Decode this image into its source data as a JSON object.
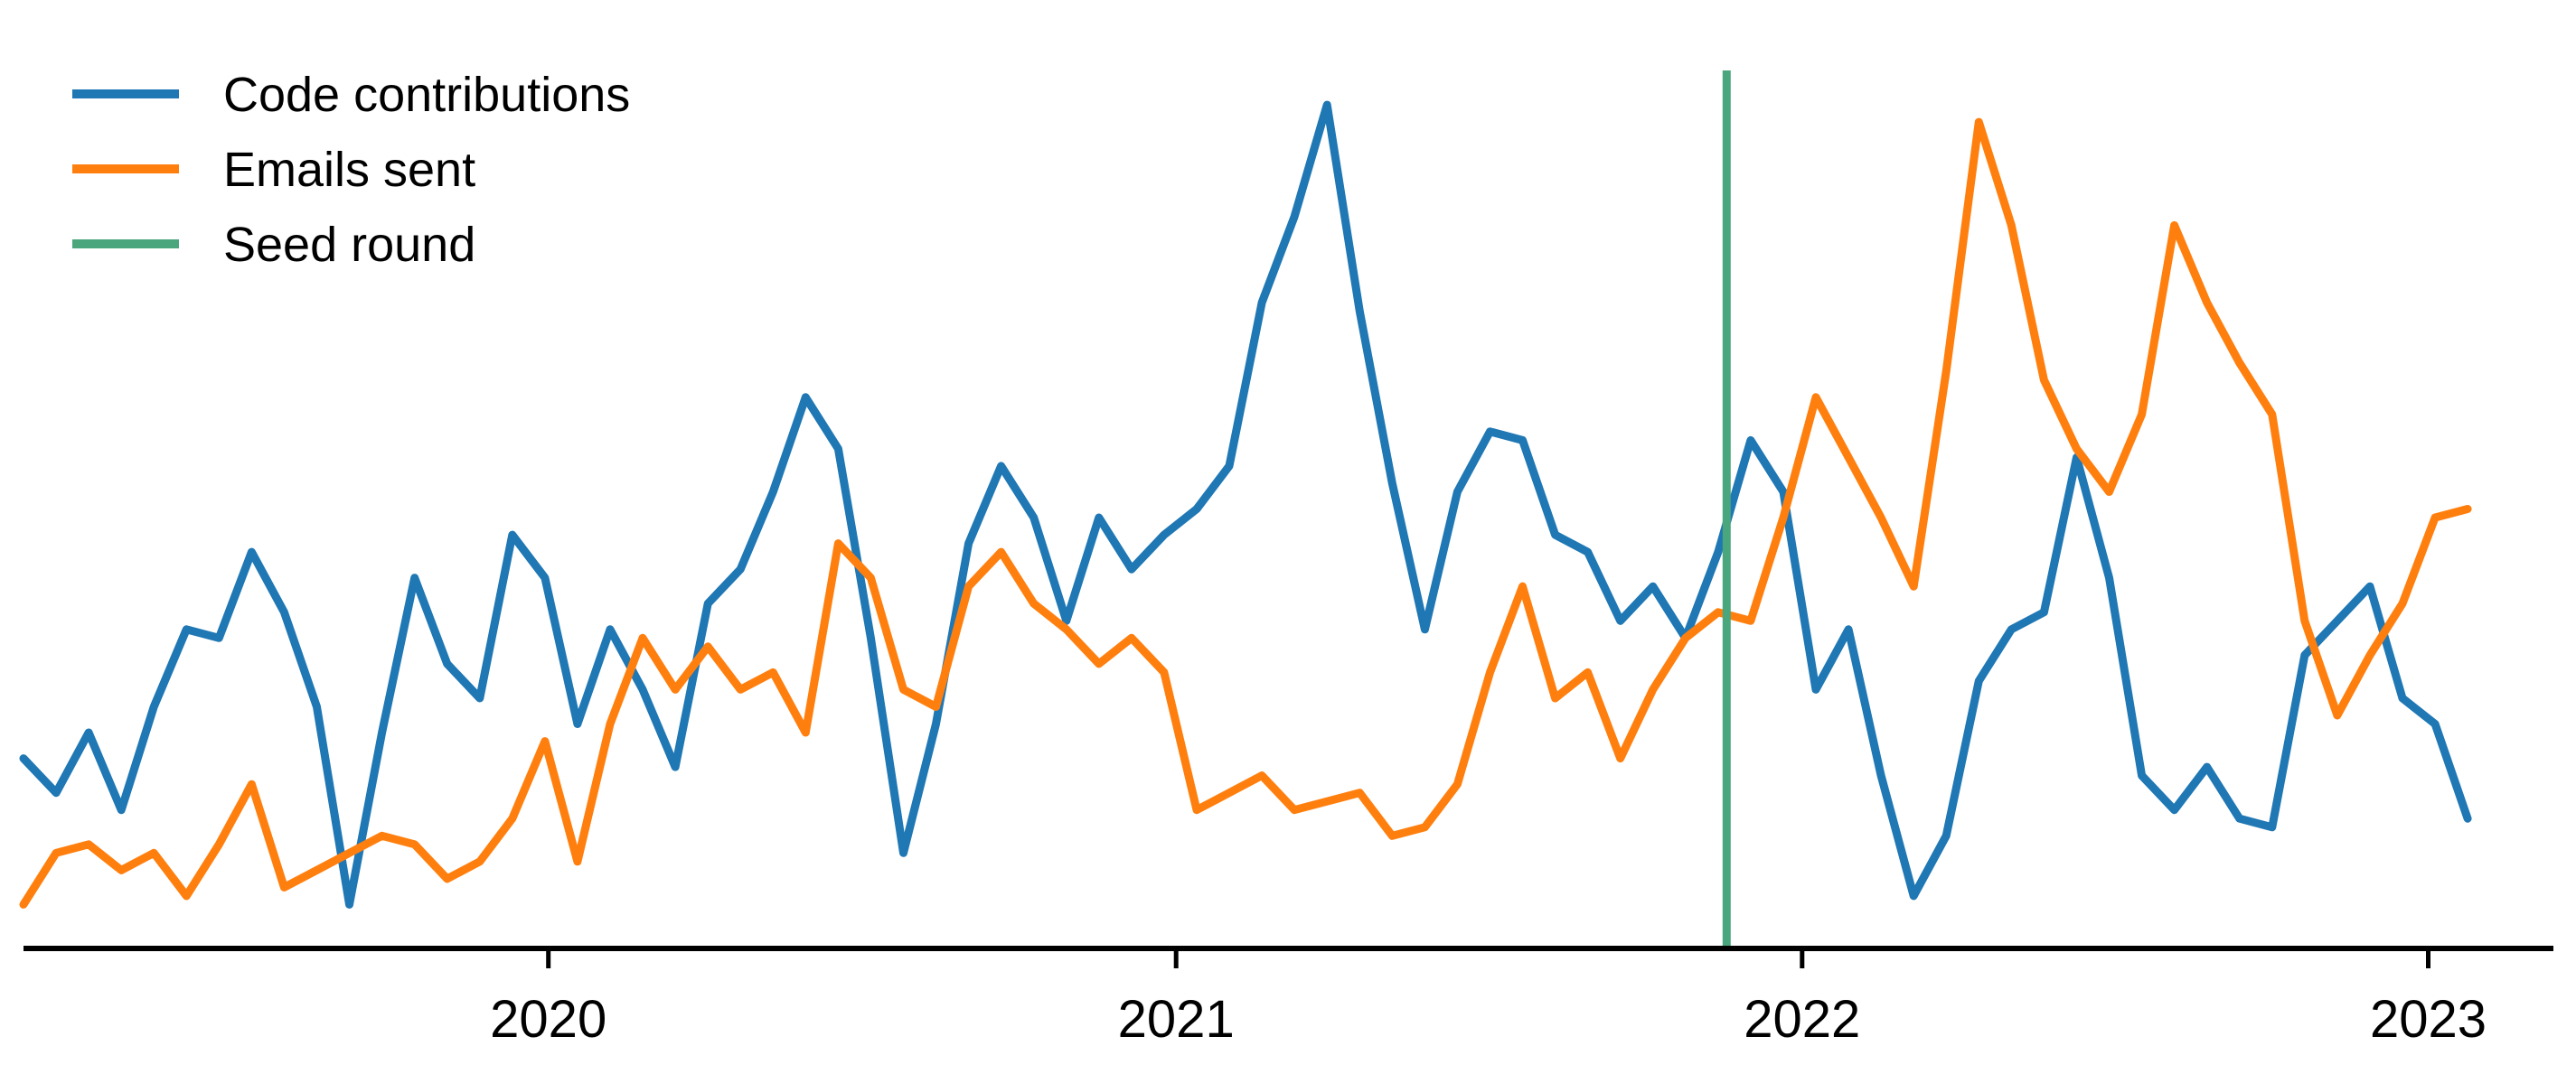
{
  "chart_data": {
    "type": "line",
    "x_axis": {
      "type": "date",
      "range": [
        "2019-03-01",
        "2023-03-15"
      ],
      "ticks": [
        {
          "value": "2020-01-01",
          "label": "2020"
        },
        {
          "value": "2021-01-01",
          "label": "2021"
        },
        {
          "value": "2022-01-01",
          "label": "2022"
        },
        {
          "value": "2023-01-01",
          "label": "2023"
        }
      ]
    },
    "y_axis": {
      "visible": false,
      "range": [
        0,
        100
      ]
    },
    "grid": false,
    "legend": {
      "position": "top-left"
    },
    "series": [
      {
        "name": "Code contributions",
        "color": "#1f77b4",
        "x": [
          "2019-03-01",
          "2019-03-20",
          "2019-04-08",
          "2019-04-27",
          "2019-05-16",
          "2019-06-04",
          "2019-06-23",
          "2019-07-12",
          "2019-07-31",
          "2019-08-19",
          "2019-09-07",
          "2019-09-26",
          "2019-10-15",
          "2019-11-03",
          "2019-11-22",
          "2019-12-11",
          "2019-12-30",
          "2020-01-18",
          "2020-02-06",
          "2020-02-25",
          "2020-03-15",
          "2020-04-03",
          "2020-04-22",
          "2020-05-11",
          "2020-05-30",
          "2020-06-18",
          "2020-07-07",
          "2020-07-26",
          "2020-08-14",
          "2020-09-02",
          "2020-09-21",
          "2020-10-10",
          "2020-10-29",
          "2020-11-17",
          "2020-12-06",
          "2020-12-25",
          "2021-01-13",
          "2021-02-01",
          "2021-02-20",
          "2021-03-11",
          "2021-03-30",
          "2021-04-18",
          "2021-05-07",
          "2021-05-26",
          "2021-06-14",
          "2021-07-03",
          "2021-07-22",
          "2021-08-10",
          "2021-08-29",
          "2021-09-17",
          "2021-10-06",
          "2021-10-25",
          "2021-11-13",
          "2021-12-02",
          "2021-12-21",
          "2022-01-09",
          "2022-01-28",
          "2022-02-16",
          "2022-03-07",
          "2022-03-26",
          "2022-04-14",
          "2022-05-03",
          "2022-05-22",
          "2022-06-10",
          "2022-06-29",
          "2022-07-18",
          "2022-08-06",
          "2022-08-25",
          "2022-09-13",
          "2022-10-02",
          "2022-10-21",
          "2022-11-09",
          "2022-11-28",
          "2022-12-17",
          "2023-01-05",
          "2023-01-24"
        ],
        "values": [
          20,
          16,
          23,
          14,
          26,
          35,
          34,
          44,
          37,
          26,
          3,
          23,
          41,
          31,
          27,
          46,
          41,
          24,
          35,
          28,
          19,
          38,
          42,
          51,
          62,
          56,
          34,
          9,
          24,
          45,
          54,
          48,
          36,
          48,
          42,
          46,
          49,
          54,
          73,
          83,
          96,
          72,
          52,
          35,
          51,
          58,
          57,
          46,
          44,
          36,
          40,
          34,
          44,
          57,
          51,
          28,
          35,
          18,
          4,
          11,
          29,
          35,
          37,
          55,
          41,
          18,
          14,
          19,
          13,
          12,
          32,
          36,
          40,
          27,
          24,
          13
        ]
      },
      {
        "name": "Emails sent",
        "color": "#ff7f0e",
        "x": [
          "2019-03-01",
          "2019-03-20",
          "2019-04-08",
          "2019-04-27",
          "2019-05-16",
          "2019-06-04",
          "2019-06-23",
          "2019-07-12",
          "2019-07-31",
          "2019-08-19",
          "2019-09-07",
          "2019-09-26",
          "2019-10-15",
          "2019-11-03",
          "2019-11-22",
          "2019-12-11",
          "2019-12-30",
          "2020-01-18",
          "2020-02-06",
          "2020-02-25",
          "2020-03-15",
          "2020-04-03",
          "2020-04-22",
          "2020-05-11",
          "2020-05-30",
          "2020-06-18",
          "2020-07-07",
          "2020-07-26",
          "2020-08-14",
          "2020-09-02",
          "2020-09-21",
          "2020-10-10",
          "2020-10-29",
          "2020-11-17",
          "2020-12-06",
          "2020-12-25",
          "2021-01-13",
          "2021-02-01",
          "2021-02-20",
          "2021-03-11",
          "2021-03-30",
          "2021-04-18",
          "2021-05-07",
          "2021-05-26",
          "2021-06-14",
          "2021-07-03",
          "2021-07-22",
          "2021-08-10",
          "2021-08-29",
          "2021-09-17",
          "2021-10-06",
          "2021-10-25",
          "2021-11-13",
          "2021-12-02",
          "2021-12-21",
          "2022-01-09",
          "2022-01-28",
          "2022-02-16",
          "2022-03-07",
          "2022-03-26",
          "2022-04-14",
          "2022-05-03",
          "2022-05-22",
          "2022-06-10",
          "2022-06-29",
          "2022-07-18",
          "2022-08-06",
          "2022-08-25",
          "2022-09-13",
          "2022-10-02",
          "2022-10-21",
          "2022-11-09",
          "2022-11-28",
          "2022-12-17",
          "2023-01-05",
          "2023-01-24"
        ],
        "values": [
          3,
          9,
          10,
          7,
          9,
          4,
          10,
          17,
          5,
          7,
          9,
          11,
          10,
          6,
          8,
          13,
          22,
          8,
          24,
          34,
          28,
          33,
          28,
          30,
          23,
          45,
          41,
          28,
          26,
          40,
          44,
          38,
          35,
          31,
          34,
          30,
          14,
          16,
          18,
          14,
          15,
          16,
          11,
          12,
          17,
          30,
          40,
          27,
          30,
          20,
          28,
          34,
          37,
          36,
          48,
          62,
          55,
          48,
          40,
          65,
          94,
          82,
          64,
          56,
          51,
          60,
          82,
          73,
          66,
          60,
          36,
          25,
          32,
          38,
          48,
          49
        ]
      }
    ],
    "annotations": [
      {
        "type": "vline",
        "name": "Seed round",
        "x": "2021-11-18",
        "color": "#4aa67c"
      }
    ]
  }
}
